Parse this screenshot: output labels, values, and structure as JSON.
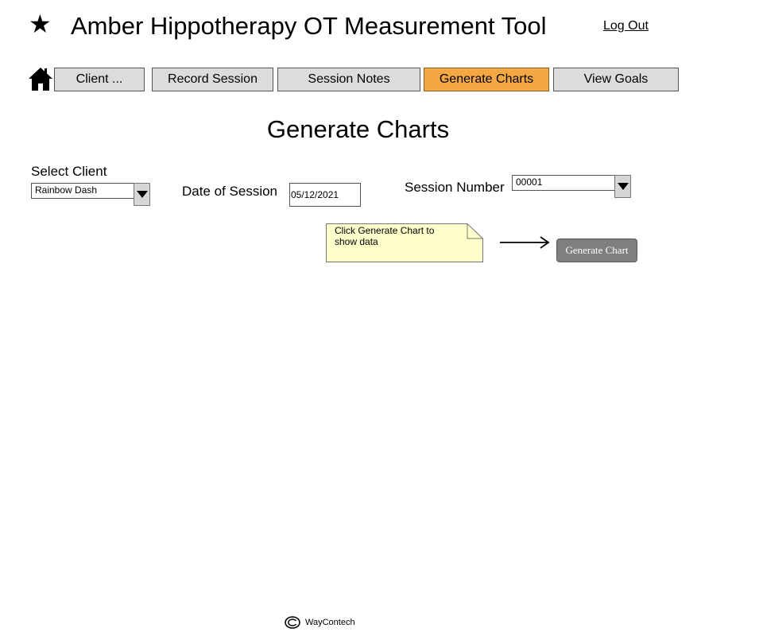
{
  "header": {
    "logo_glyph": "★",
    "logo_icon": "star-icon",
    "title": "Amber Hippotherapy OT Measurement Tool",
    "logout_label": "Log Out"
  },
  "nav": {
    "home_icon": "home-icon",
    "tabs": [
      {
        "label": "Client ...",
        "active": false
      },
      {
        "label": "Record Session",
        "active": false
      },
      {
        "label": "Session Notes",
        "active": false
      },
      {
        "label": "Generate Charts",
        "active": true
      },
      {
        "label": "View Goals",
        "active": false
      }
    ]
  },
  "page": {
    "title": "Generate Charts"
  },
  "form": {
    "client": {
      "label": "Select Client",
      "value": "Rainbow Dash"
    },
    "date": {
      "label": "Date of Session",
      "value": "05/12/2021"
    },
    "session": {
      "label": "Session Number",
      "value": "00001"
    }
  },
  "note": {
    "text": "Click Generate Chart to show data"
  },
  "generate_button": {
    "label": "Generate Chart"
  },
  "footer": {
    "brand": "WayContech",
    "icon": "copyright-icon"
  },
  "colors": {
    "active_tab": "#f4a742",
    "tab": "#dcdcdc",
    "note": "#ffffcc",
    "button": "#7f7f7f"
  }
}
